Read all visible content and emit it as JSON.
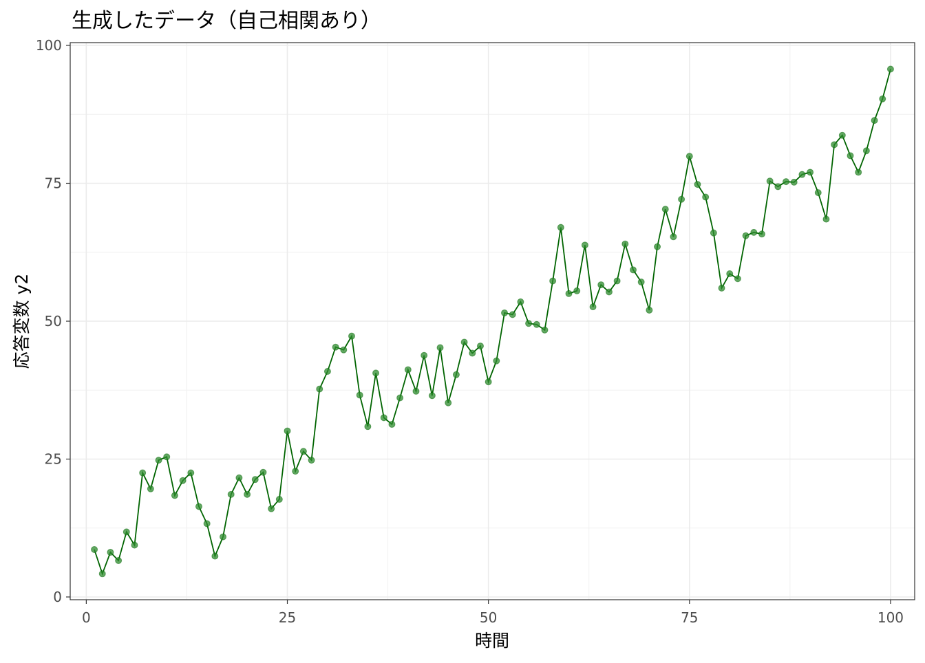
{
  "chart_data": {
    "type": "line",
    "title": "生成したデータ（自己相関あり）",
    "xlabel": "時間",
    "ylabel": "応答変数 y2",
    "xlim": [
      -2,
      103
    ],
    "ylim": [
      -0.5,
      100.5
    ],
    "x_ticks": [
      0,
      25,
      50,
      75,
      100
    ],
    "y_ticks": [
      0,
      25,
      50,
      75,
      100
    ],
    "grid": true,
    "markers": true,
    "line_color": "#006400",
    "point_color": "#2e8b2e",
    "x": [
      1,
      2,
      3,
      4,
      5,
      6,
      7,
      8,
      9,
      10,
      11,
      12,
      13,
      14,
      15,
      16,
      17,
      18,
      19,
      20,
      21,
      22,
      23,
      24,
      25,
      26,
      27,
      28,
      29,
      30,
      31,
      32,
      33,
      34,
      35,
      36,
      37,
      38,
      39,
      40,
      41,
      42,
      43,
      44,
      45,
      46,
      47,
      48,
      49,
      50,
      51,
      52,
      53,
      54,
      55,
      56,
      57,
      58,
      59,
      60,
      61,
      62,
      63,
      64,
      65,
      66,
      67,
      68,
      69,
      70,
      71,
      72,
      73,
      74,
      75,
      76,
      77,
      78,
      79,
      80,
      81,
      82,
      83,
      84,
      85,
      86,
      87,
      88,
      89,
      90,
      91,
      92,
      93,
      94,
      95,
      96,
      97,
      98,
      99,
      100
    ],
    "y": [
      8.6,
      4.2,
      8.1,
      6.6,
      11.8,
      9.4,
      22.5,
      19.6,
      24.8,
      25.4,
      18.4,
      21.1,
      22.5,
      16.4,
      13.3,
      7.4,
      10.9,
      18.6,
      21.6,
      18.6,
      21.3,
      22.6,
      16.0,
      17.7,
      30.1,
      22.8,
      26.4,
      24.8,
      37.7,
      40.9,
      45.3,
      44.8,
      47.3,
      36.6,
      30.9,
      40.6,
      32.5,
      31.3,
      36.1,
      41.2,
      37.3,
      43.8,
      36.5,
      45.2,
      35.2,
      40.3,
      46.2,
      44.2,
      45.5,
      39.0,
      42.8,
      51.5,
      51.2,
      53.5,
      49.6,
      49.4,
      48.4,
      57.3,
      67.0,
      55.0,
      55.5,
      63.8,
      52.6,
      56.6,
      55.3,
      57.3,
      64.0,
      59.3,
      57.1,
      52.0,
      63.5,
      70.3,
      65.3,
      72.1,
      79.9,
      74.8,
      72.5,
      66.0,
      56.0,
      58.6,
      57.7,
      65.5,
      66.1,
      65.8,
      75.4,
      74.4,
      75.3,
      75.2,
      76.6,
      77.0,
      73.3,
      68.5,
      82.0,
      83.7,
      80.0,
      77.0,
      80.9,
      86.4,
      90.3,
      95.7
    ]
  }
}
